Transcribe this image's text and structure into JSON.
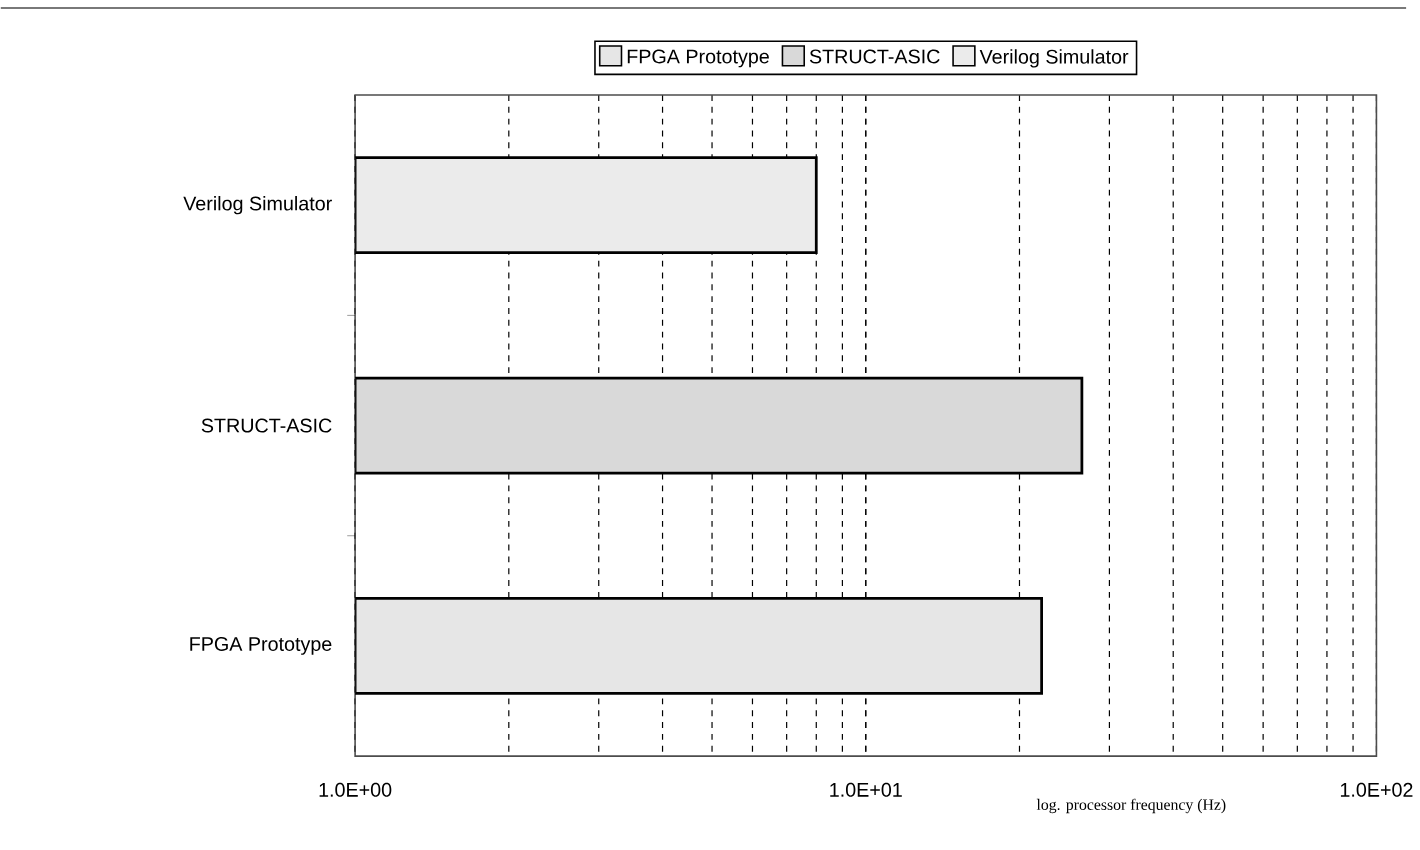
{
  "chart_data": {
    "type": "bar",
    "orientation": "horizontal",
    "xlabel": "log. processor frequency (Hz)",
    "categories": [
      "Verilog Simulator",
      "STRUCT-ASIC",
      "FPGA Prototype"
    ],
    "series": [
      {
        "name": "FPGA Prototype",
        "color": "#e6e6e6",
        "values": [
          null,
          null,
          22.1
        ]
      },
      {
        "name": "STRUCT-ASIC",
        "color": "#d9d9d9",
        "values": [
          null,
          26.5,
          null
        ]
      },
      {
        "name": "Verilog Simulator",
        "color": "#ebebeb",
        "values": [
          8.0,
          null,
          null
        ]
      }
    ],
    "log": "x",
    "xlim": [
      1,
      100
    ],
    "xticks": [
      {
        "value": 1,
        "label": "1.0E+00"
      },
      {
        "value": 10,
        "label": "1.0E+01"
      },
      {
        "value": 100,
        "label": "1.0E+02"
      }
    ],
    "grid": "x",
    "legend": "top"
  }
}
